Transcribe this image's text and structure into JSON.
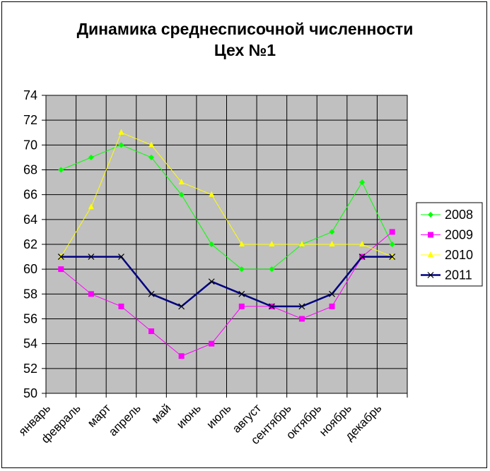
{
  "chart_data": {
    "type": "line",
    "title_line1": "Динамика среднесписочной численности",
    "title_line2": "Цех №1",
    "categories": [
      "январь",
      "февраль",
      "март",
      "апрель",
      "май",
      "июнь",
      "июль",
      "август",
      "сентябрь",
      "октябрь",
      "ноябрь",
      "декабрь"
    ],
    "ylim": [
      50,
      74
    ],
    "ystep": 2,
    "grid": true,
    "legend_position": "right",
    "plot_background": "#c0c0c0",
    "series": [
      {
        "name": "2008",
        "color": "#00ff00",
        "marker": "diamond",
        "values": [
          68,
          69,
          70,
          69,
          66,
          62,
          60,
          60,
          62,
          63,
          67,
          62
        ]
      },
      {
        "name": "2009",
        "color": "#ff00ff",
        "marker": "square",
        "values": [
          60,
          58,
          57,
          55,
          53,
          54,
          57,
          57,
          56,
          57,
          61,
          63
        ]
      },
      {
        "name": "2010",
        "color": "#ffff00",
        "marker": "triangle",
        "values": [
          61,
          65,
          71,
          70,
          67,
          66,
          62,
          62,
          62,
          62,
          62,
          61
        ]
      },
      {
        "name": "2011",
        "color": "#000080",
        "marker": "x",
        "values": [
          61,
          61,
          61,
          58,
          57,
          59,
          58,
          57,
          57,
          58,
          61,
          61
        ]
      }
    ]
  }
}
